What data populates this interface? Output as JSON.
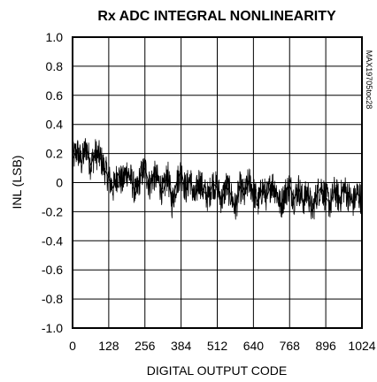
{
  "chart_data": {
    "type": "line",
    "title": "Rx ADC INTEGRAL NONLINEARITY",
    "xlabel": "DIGITAL OUTPUT CODE",
    "ylabel": "INL (LSB)",
    "side_note": "MAX19705toc28",
    "xlim": [
      0,
      1024
    ],
    "ylim": [
      -1.0,
      1.0
    ],
    "x_ticks": [
      0,
      128,
      256,
      384,
      512,
      640,
      768,
      896,
      1024
    ],
    "x_tick_labels": [
      "0",
      "128",
      "256",
      "384",
      "512",
      "640",
      "768",
      "896",
      "1024"
    ],
    "y_ticks": [
      1.0,
      0.8,
      0.6,
      0.4,
      0.2,
      0,
      -0.2,
      -0.4,
      -0.6,
      -0.8,
      -1.0
    ],
    "y_tick_labels": [
      "1.0",
      "0.8",
      "0.6",
      "0.4",
      "0.2",
      "0",
      "-0.2",
      "-0.4",
      "-0.6",
      "-0.8",
      "-1.0"
    ],
    "grid": true,
    "series": [
      {
        "color": "#000000",
        "x": [
          0,
          16,
          32,
          48,
          64,
          80,
          96,
          112,
          128,
          144,
          160,
          176,
          192,
          208,
          224,
          240,
          256,
          272,
          288,
          304,
          320,
          336,
          352,
          368,
          384,
          400,
          416,
          432,
          448,
          464,
          480,
          496,
          512,
          528,
          544,
          560,
          576,
          592,
          608,
          624,
          640,
          656,
          672,
          688,
          704,
          720,
          736,
          752,
          768,
          784,
          800,
          816,
          832,
          848,
          864,
          880,
          896,
          912,
          928,
          944,
          960,
          976,
          992,
          1008,
          1024
        ],
        "y": [
          0.16,
          0.22,
          0.14,
          0.25,
          0.12,
          0.2,
          0.18,
          0.1,
          0.03,
          -0.04,
          0.06,
          0.0,
          0.08,
          0.02,
          -0.08,
          0.04,
          0.1,
          -0.02,
          0.05,
          0.01,
          -0.07,
          0.06,
          -0.14,
          0.0,
          0.08,
          -0.05,
          0.03,
          -0.12,
          0.02,
          -0.06,
          -0.1,
          0.0,
          -0.04,
          -0.12,
          -0.02,
          -0.08,
          -0.18,
          -0.03,
          -0.09,
          0.01,
          -0.06,
          -0.14,
          -0.04,
          -0.1,
          0.0,
          -0.05,
          -0.16,
          -0.07,
          -0.02,
          -0.11,
          -0.04,
          -0.13,
          -0.06,
          -0.2,
          -0.08,
          -0.03,
          -0.1,
          -0.15,
          -0.05,
          -0.12,
          -0.04,
          -0.09,
          -0.14,
          -0.07,
          -0.12
        ]
      }
    ]
  }
}
